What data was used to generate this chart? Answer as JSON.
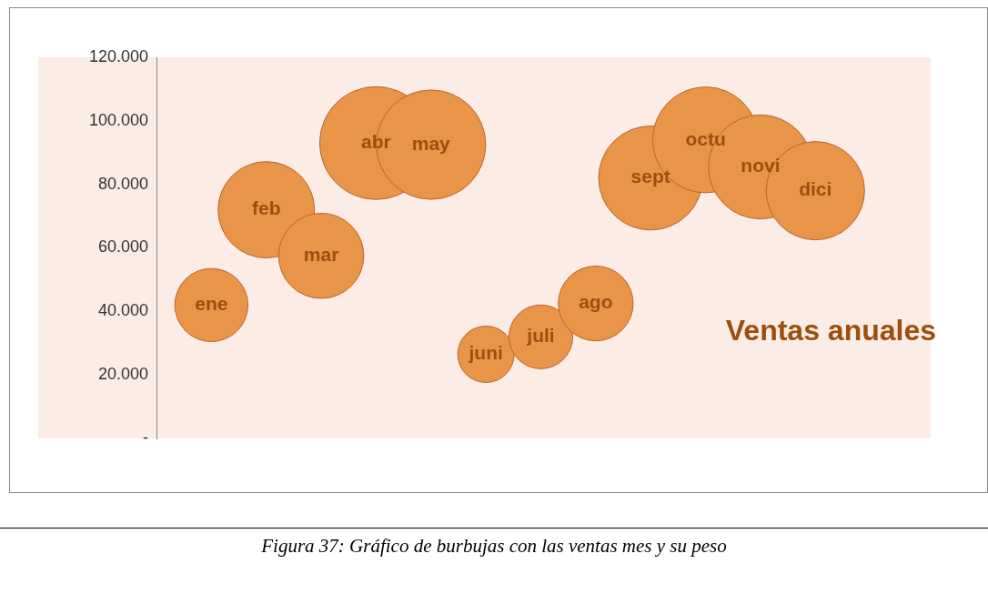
{
  "chart_data": {
    "type": "bubble",
    "title": "Ventas anuales",
    "categories": [
      "ene",
      "feb",
      "mar",
      "abr",
      "may",
      "juni",
      "juli",
      "ago",
      "sept",
      "octu",
      "novi",
      "dici"
    ],
    "values": [
      42000,
      72000,
      57500,
      93000,
      92500,
      26500,
      32000,
      42500,
      82000,
      94000,
      85500,
      78000
    ],
    "sizes": [
      0.42,
      0.73,
      0.57,
      1,
      0.94,
      0.25,
      0.32,
      0.44,
      0.85,
      0.88,
      0.85,
      0.76
    ],
    "color": "#e8954a",
    "ylim": [
      0,
      120000
    ],
    "yticks": [
      {
        "value": 0,
        "label": "-"
      },
      {
        "value": 20000,
        "label": "20.000"
      },
      {
        "value": 40000,
        "label": "40.000"
      },
      {
        "value": 60000,
        "label": "60.000"
      },
      {
        "value": 80000,
        "label": "80.000"
      },
      {
        "value": 100000,
        "label": "100.000"
      },
      {
        "value": 120000,
        "label": "120.000"
      }
    ],
    "tick_labels": "y",
    "annotations": [
      "Figura 37: Gráfico de burbujas con las ventas mes y su peso"
    ]
  }
}
